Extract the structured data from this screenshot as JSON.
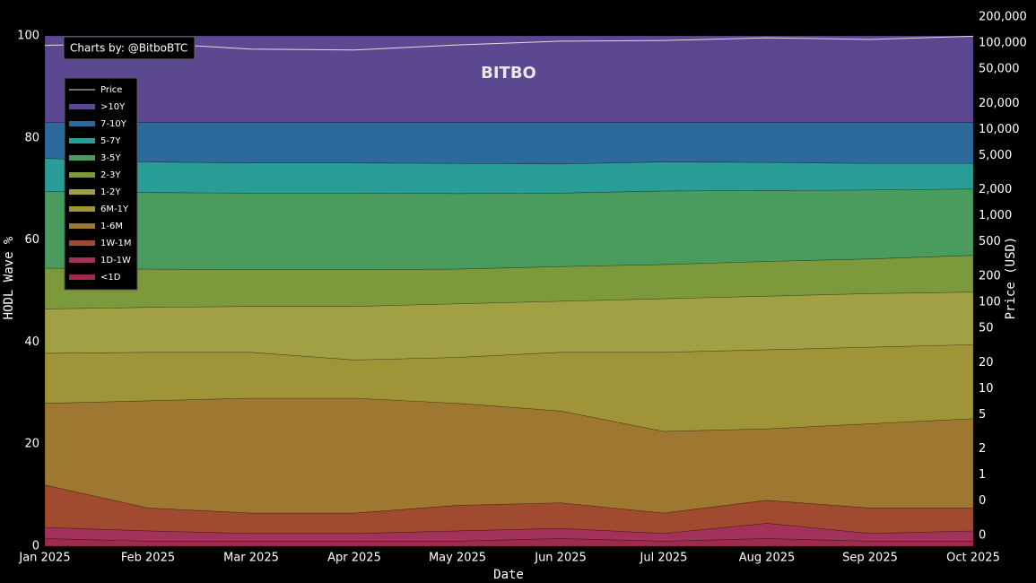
{
  "chart_data": {
    "type": "stacked-area",
    "annotation": "Charts by: @BitboBTC",
    "logo": "BITBO",
    "x_label": "Date",
    "y_label": "HODL Wave %",
    "y2_label": "Price (USD)",
    "x": [
      "Jan 2025",
      "Feb 2025",
      "Mar 2025",
      "Apr 2025",
      "May 2025",
      "Jun 2025",
      "Jul 2025",
      "Aug 2025",
      "Sep 2025",
      "Oct 2025"
    ],
    "ylim": [
      0,
      100
    ],
    "yticks": [
      0,
      20,
      40,
      60,
      80,
      100
    ],
    "y2_log": true,
    "y2lim": [
      0.15,
      121000
    ],
    "y2ticks": [
      {
        "value": 200000,
        "label": "200,000"
      },
      {
        "value": 100000,
        "label": "100,000"
      },
      {
        "value": 50000,
        "label": "50,000"
      },
      {
        "value": 20000,
        "label": "20,000"
      },
      {
        "value": 10000,
        "label": "10,000"
      },
      {
        "value": 5000,
        "label": "5,000"
      },
      {
        "value": 2000,
        "label": "2,000"
      },
      {
        "value": 1000,
        "label": "1,000"
      },
      500,
      200,
      100,
      50,
      20,
      10,
      5,
      2,
      1,
      {
        "value": 0.5,
        "label": "0"
      },
      {
        "value": 0.2,
        "label": "0"
      }
    ],
    "series": [
      {
        "name": "<1D",
        "color": "#a02a4c",
        "values": [
          1.5,
          1,
          1,
          1,
          1,
          1.5,
          1,
          1.5,
          1,
          1
        ]
      },
      {
        "name": "1D-1W",
        "color": "#a3325a",
        "values": [
          2.2,
          2,
          1.5,
          1.5,
          2,
          2,
          1.5,
          3,
          1.5,
          2
        ]
      },
      {
        "name": "1W-1M",
        "color": "#a04a30",
        "values": [
          8.3,
          4.5,
          4,
          4,
          5,
          5,
          4,
          4.5,
          5,
          4.5
        ]
      },
      {
        "name": "1-6M",
        "color": "#9e7830",
        "values": [
          16,
          21,
          22.5,
          22.5,
          20,
          18,
          16,
          14,
          16.5,
          17.5
        ]
      },
      {
        "name": "6M-1Y",
        "color": "#a09438",
        "values": [
          9.8,
          9.5,
          9,
          7.5,
          9,
          11.5,
          15.5,
          15.5,
          15,
          14.5
        ]
      },
      {
        "name": "1-2Y",
        "color": "#a2a044",
        "values": [
          8.7,
          8.8,
          9,
          10.5,
          10.5,
          10,
          10.5,
          10.5,
          10.5,
          10.3
        ]
      },
      {
        "name": "2-3Y",
        "color": "#7c9a3c",
        "values": [
          8,
          7.5,
          7.2,
          7.2,
          6.8,
          6.8,
          6.7,
          6.8,
          6.8,
          7.2
        ]
      },
      {
        "name": "3-5Y",
        "color": "#4a9c5e",
        "values": [
          15,
          15,
          15,
          15,
          14.8,
          14.4,
          14.4,
          13.9,
          13.5,
          13
        ]
      },
      {
        "name": "5-7Y",
        "color": "#289e96",
        "values": [
          6.5,
          6,
          5.9,
          5.9,
          5.9,
          5.7,
          5.7,
          5.5,
          5.2,
          5
        ]
      },
      {
        "name": "7-10Y",
        "color": "#2c6a9c",
        "values": [
          7,
          7.7,
          7.9,
          7.9,
          8,
          8.1,
          7.7,
          7.8,
          8,
          8
        ]
      },
      {
        "name": ">10Y",
        "color": "#5c4891",
        "values": [
          17,
          17,
          17,
          17,
          17,
          17,
          17,
          17,
          17,
          17
        ]
      },
      {
        "name": "Price",
        "color": "#dddddd",
        "axis": "y2",
        "values": [
          94000,
          100000,
          85000,
          83000,
          95000,
          105000,
          107000,
          115000,
          110000,
          120000
        ]
      }
    ]
  }
}
